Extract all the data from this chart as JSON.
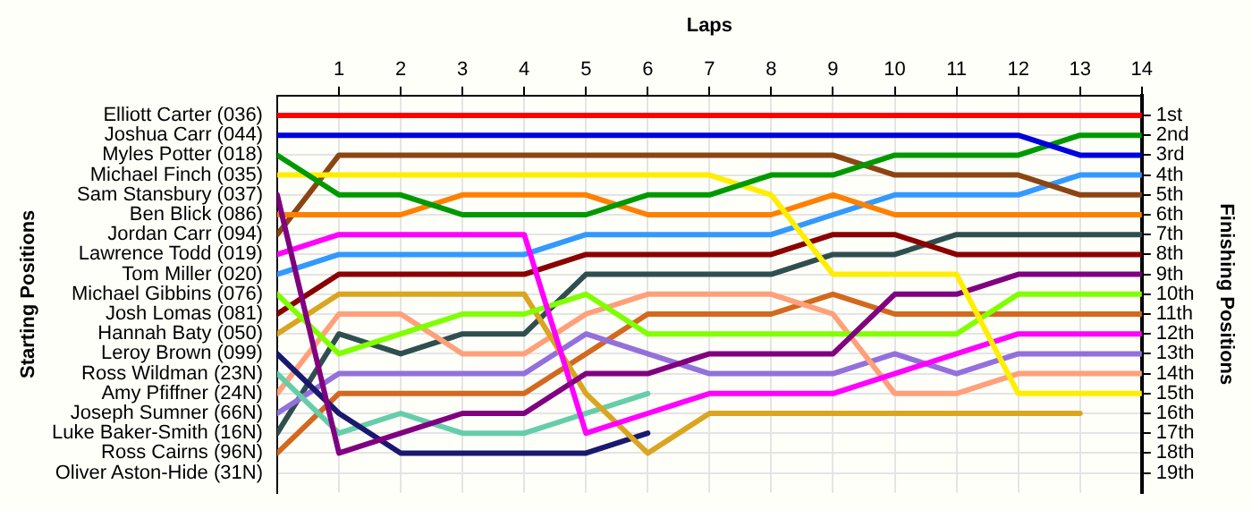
{
  "chart_data": {
    "type": "line",
    "xlabel": "Laps",
    "annotations": [
      "Starting Positions"
    ],
    "y2label": "Finishing Positions",
    "x": [
      0,
      1,
      2,
      3,
      4,
      5,
      6,
      7,
      8,
      9,
      10,
      11,
      12,
      13,
      14
    ],
    "xlim": [
      0,
      14
    ],
    "xticks": [
      1,
      2,
      3,
      4,
      5,
      6,
      7,
      8,
      9,
      10,
      11,
      12,
      13,
      14
    ],
    "y_categories": [
      "Elliott Carter (036)",
      "Joshua Carr (044)",
      "Myles Potter (018)",
      "Michael Finch (035)",
      "Sam Stansbury (037)",
      "Ben Blick (086)",
      "Jordan Carr (094)",
      "Lawrence Todd (019)",
      "Tom Miller (020)",
      "Michael Gibbins (076)",
      "Josh Lomas (081)",
      "Hannah Baty (050)",
      "Leroy Brown (099)",
      "Ross Wildman (23N)",
      "Amy Pfiffner (24N)",
      "Joseph Sumner (66N)",
      "Luke Baker-Smith (16N)",
      "Ross Cairns (96N)",
      "Oliver Aston-Hide (31N)"
    ],
    "y2lim": [
      20,
      0
    ],
    "y2ticks": [
      {
        "value": 1,
        "label": "1st"
      },
      {
        "value": 2,
        "label": "2nd"
      },
      {
        "value": 3,
        "label": "3rd"
      },
      {
        "value": 4,
        "label": "4th"
      },
      {
        "value": 5,
        "label": "5th"
      },
      {
        "value": 6,
        "label": "6th"
      },
      {
        "value": 7,
        "label": "7th"
      },
      {
        "value": 8,
        "label": "8th"
      },
      {
        "value": 9,
        "label": "9th"
      },
      {
        "value": 10,
        "label": "10th"
      },
      {
        "value": 11,
        "label": "11th"
      },
      {
        "value": 12,
        "label": "12th"
      },
      {
        "value": 13,
        "label": "13th"
      },
      {
        "value": 14,
        "label": "14th"
      },
      {
        "value": 15,
        "label": "15th"
      },
      {
        "value": 16,
        "label": "16th"
      },
      {
        "value": 17,
        "label": "17th"
      },
      {
        "value": 18,
        "label": "18th"
      },
      {
        "value": 19,
        "label": "19th"
      }
    ],
    "grid": true,
    "legend": false,
    "series": [
      {
        "color": "#ff0000",
        "axis": "y2",
        "values": [
          1,
          1,
          1,
          1,
          1,
          1,
          1,
          1,
          1,
          1,
          1,
          1,
          1,
          1,
          1
        ]
      },
      {
        "color": "#0000dd",
        "axis": "y2",
        "values": [
          2,
          2,
          2,
          2,
          2,
          2,
          2,
          2,
          2,
          2,
          2,
          2,
          2,
          3,
          3
        ]
      },
      {
        "color": "#009900",
        "axis": "y2",
        "values": [
          3,
          5,
          5,
          6,
          6,
          6,
          5,
          5,
          4,
          4,
          3,
          3,
          3,
          2,
          2
        ]
      },
      {
        "color": "#ffee00",
        "axis": "y2",
        "values": [
          4,
          4,
          4,
          4,
          4,
          4,
          4,
          4,
          5,
          9,
          9,
          9,
          15,
          15,
          15
        ]
      },
      {
        "color": "#800080",
        "axis": "y2",
        "values": [
          5,
          18,
          17,
          16,
          16,
          14,
          14,
          13,
          13,
          13,
          10,
          10,
          9,
          9,
          9
        ]
      },
      {
        "color": "#ff8000",
        "axis": "y2",
        "values": [
          6,
          6,
          6,
          5,
          5,
          5,
          6,
          6,
          6,
          5,
          6,
          6,
          6,
          6,
          6
        ]
      },
      {
        "color": "#8b4513",
        "axis": "y2",
        "values": [
          7,
          3,
          3,
          3,
          3,
          3,
          3,
          3,
          3,
          3,
          4,
          4,
          4,
          5,
          5
        ]
      },
      {
        "color": "#ff00ff",
        "axis": "y2",
        "values": [
          8,
          7,
          7,
          7,
          7,
          17,
          16,
          15,
          15,
          15,
          14,
          13,
          12,
          12,
          12
        ]
      },
      {
        "color": "#3399ff",
        "axis": "y2",
        "values": [
          9,
          8,
          8,
          8,
          8,
          7,
          7,
          7,
          7,
          6,
          5,
          5,
          5,
          4,
          4
        ]
      },
      {
        "color": "#80ff00",
        "axis": "y2",
        "values": [
          10,
          13,
          12,
          11,
          11,
          10,
          12,
          12,
          12,
          12,
          12,
          12,
          10,
          10,
          10
        ]
      },
      {
        "color": "#8b0000",
        "axis": "y2",
        "values": [
          11,
          9,
          9,
          9,
          9,
          8,
          8,
          8,
          8,
          7,
          7,
          8,
          8,
          8,
          8
        ]
      },
      {
        "color": "#daa520",
        "axis": "y2",
        "values": [
          12,
          10,
          10,
          10,
          10,
          15,
          18,
          16,
          16,
          16,
          16,
          16,
          16,
          16,
          null
        ]
      },
      {
        "color": "#191970",
        "axis": "y2",
        "values": [
          13,
          16,
          18,
          18,
          18,
          18,
          17,
          null,
          null,
          null,
          null,
          null,
          null,
          null,
          null
        ]
      },
      {
        "color": "#66cdaa",
        "axis": "y2",
        "values": [
          14,
          17,
          16,
          17,
          17,
          16,
          15,
          null,
          null,
          null,
          null,
          null,
          null,
          null,
          null
        ]
      },
      {
        "color": "#ffa07a",
        "axis": "y2",
        "values": [
          15,
          11,
          11,
          13,
          13,
          11,
          10,
          10,
          10,
          11,
          15,
          15,
          14,
          14,
          14
        ]
      },
      {
        "color": "#9370db",
        "axis": "y2",
        "values": [
          16,
          14,
          14,
          14,
          14,
          12,
          13,
          14,
          14,
          14,
          13,
          14,
          13,
          13,
          13
        ]
      },
      {
        "color": "#2f4f4f",
        "axis": "y2",
        "values": [
          17,
          12,
          13,
          12,
          12,
          9,
          9,
          9,
          9,
          8,
          8,
          7,
          7,
          7,
          7
        ]
      },
      {
        "color": "#d2691e",
        "axis": "y2",
        "values": [
          18,
          15,
          15,
          15,
          15,
          13,
          11,
          11,
          11,
          10,
          11,
          11,
          11,
          11,
          11
        ]
      }
    ]
  }
}
